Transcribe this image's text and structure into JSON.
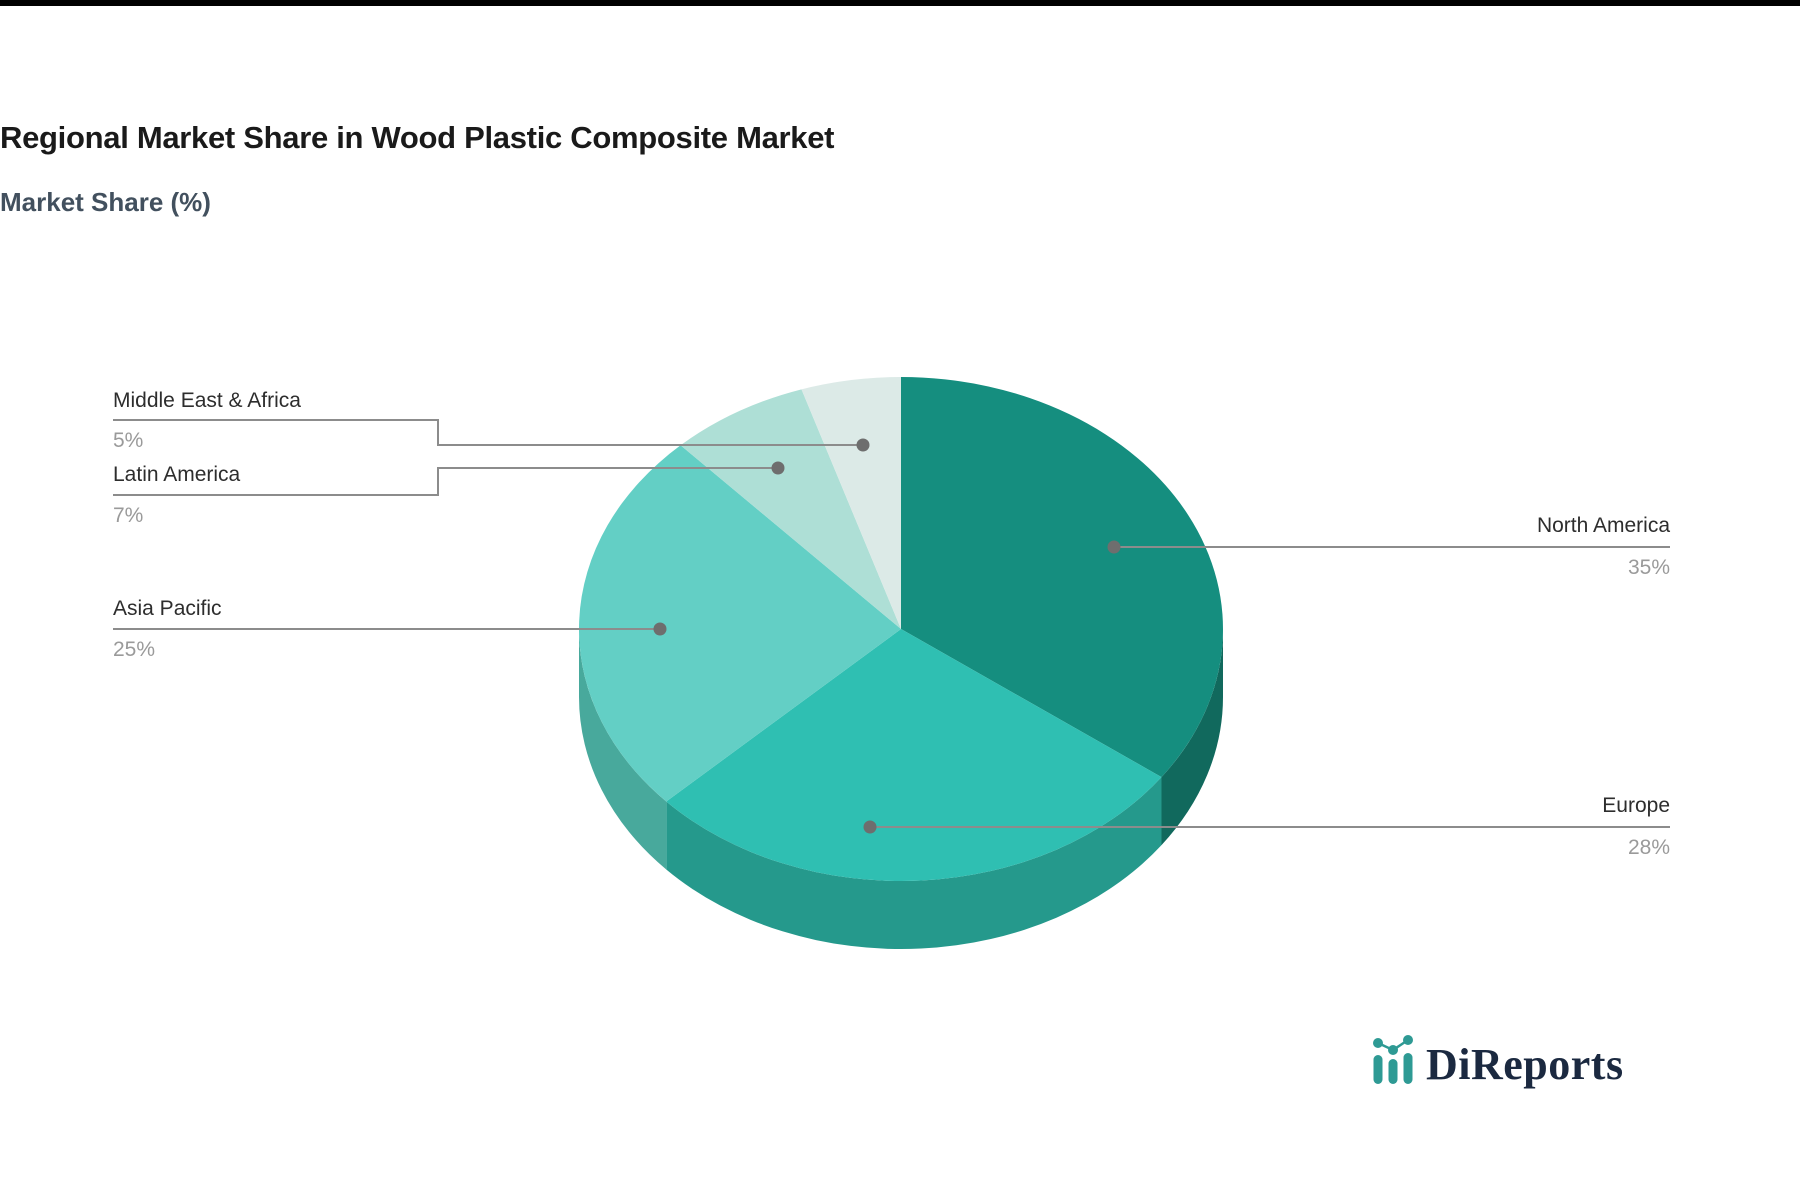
{
  "header": {
    "title": "Regional Market Share in Wood Plastic Composite Market",
    "subtitle": "Market Share (%)"
  },
  "chart_data": {
    "type": "pie",
    "title": "Regional Market Share in Wood Plastic Composite Market",
    "subtitle": "Market Share (%)",
    "effect": "3d",
    "start_angle_deg": -90,
    "direction": "clockwise",
    "labels": [
      "North America",
      "Europe",
      "Asia Pacific",
      "Latin America",
      "Middle East & Africa"
    ],
    "values": [
      35,
      28,
      25,
      7,
      5
    ],
    "value_labels": [
      "35%",
      "28%",
      "25%",
      "7%",
      "5%"
    ],
    "colors": [
      "#158E7F",
      "#2FBFB2",
      "#63CFC5",
      "#AEDFD6",
      "#DCEAE7"
    ],
    "side_colors": [
      "#11695D",
      "#25998C",
      "#48A99C",
      "#8FC7BC",
      "#C3D6D1"
    ],
    "legend_position": "callout-labels",
    "grid": false
  },
  "callout_style": {
    "line_color": "#8C8C8C",
    "dot_color": "#6E6E6E",
    "name_color": "#2D2D2D",
    "pct_color": "#9A9A9A"
  },
  "logo": {
    "text": "DiReports",
    "icon": "mini-bar-line-chart-icon",
    "icon_color": "#2E9A94",
    "text_color": "#1B2940"
  }
}
